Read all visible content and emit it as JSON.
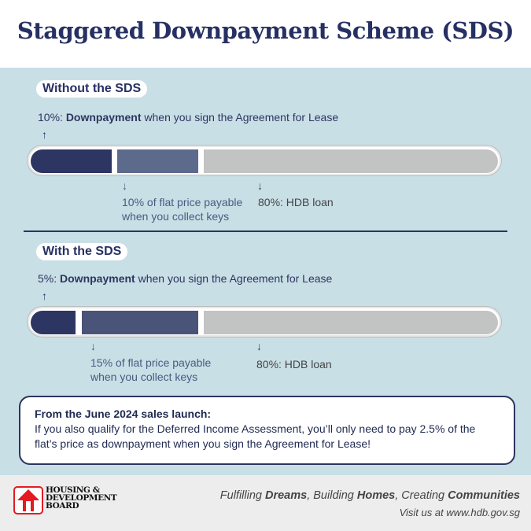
{
  "title": "Staggered Downpayment Scheme (SDS)",
  "colors": {
    "downpayment": "#2d3562",
    "collect_keys": "#5c6a8c",
    "loan": "#c2c3c3",
    "panel": "#c9dfe6",
    "logo_red": "#e31b23"
  },
  "without": {
    "heading": "Without the SDS",
    "down_pct": "10%:",
    "down_bold": "Downpayment",
    "down_rest": "when you sign the Agreement for Lease",
    "keys_line1": "10% of flat price payable",
    "keys_line2": "when you collect keys",
    "loan": "80%: HDB loan",
    "shares": [
      10,
      10,
      80
    ]
  },
  "with": {
    "heading": "With the SDS",
    "down_pct": "5%:",
    "down_bold": "Downpayment",
    "down_rest": "when you sign the Agreement for Lease",
    "keys_line1": "15% of flat price payable",
    "keys_line2": "when you collect keys",
    "loan": "80%: HDB loan",
    "shares": [
      5,
      15,
      80
    ]
  },
  "note": {
    "heading": "From the June 2024 sales launch:",
    "body": "If you also qualify for the Deferred Income Assessment, you’ll only need to pay 2.5% of the flat’s price as downpayment when you sign the Agreement for Lease!"
  },
  "footer": {
    "logo_text": "HOUSING & DEVELOPMENT BOARD",
    "slogan": [
      "Fulfilling ",
      "Dreams",
      ", Building ",
      "Homes",
      ", Creating ",
      "Communities"
    ],
    "visit": "Visit us at www.hdb.gov.sg"
  }
}
